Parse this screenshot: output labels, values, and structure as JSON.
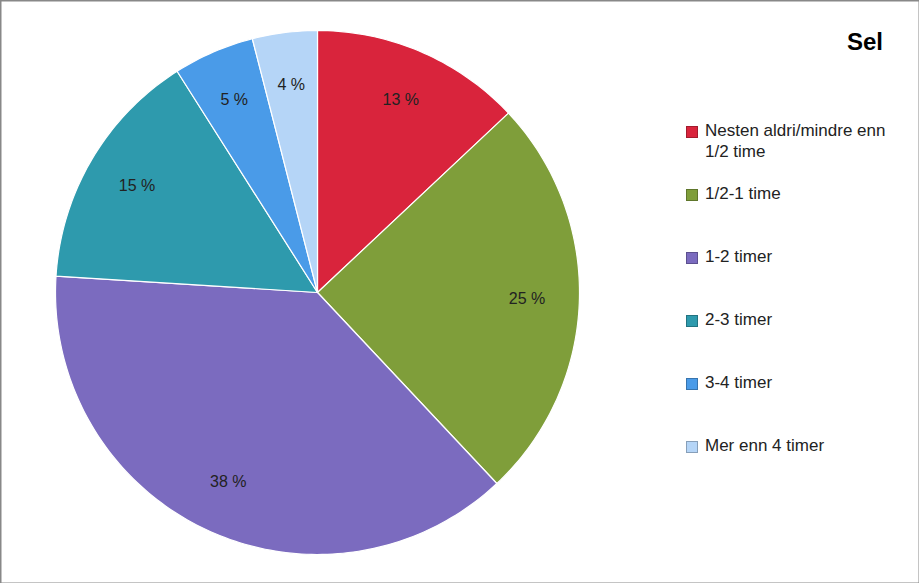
{
  "chart_data": {
    "type": "pie",
    "title": "Sel",
    "categories": [
      "Nesten aldri/mindre enn 1/2 time",
      "1/2-1 time",
      "1-2 timer",
      "2-3 timer",
      "3-4 timer",
      "Mer enn 4 timer"
    ],
    "values": [
      13,
      25,
      38,
      15,
      5,
      4
    ],
    "value_labels": [
      "13 %",
      "25 %",
      "38 %",
      "15 %",
      "5 %",
      "4 %"
    ],
    "colors": [
      "#d9243c",
      "#7f9e3a",
      "#7b6bbf",
      "#2e9aad",
      "#4a9be8",
      "#b5d5f7"
    ],
    "data_labels": true,
    "legend": "right"
  }
}
